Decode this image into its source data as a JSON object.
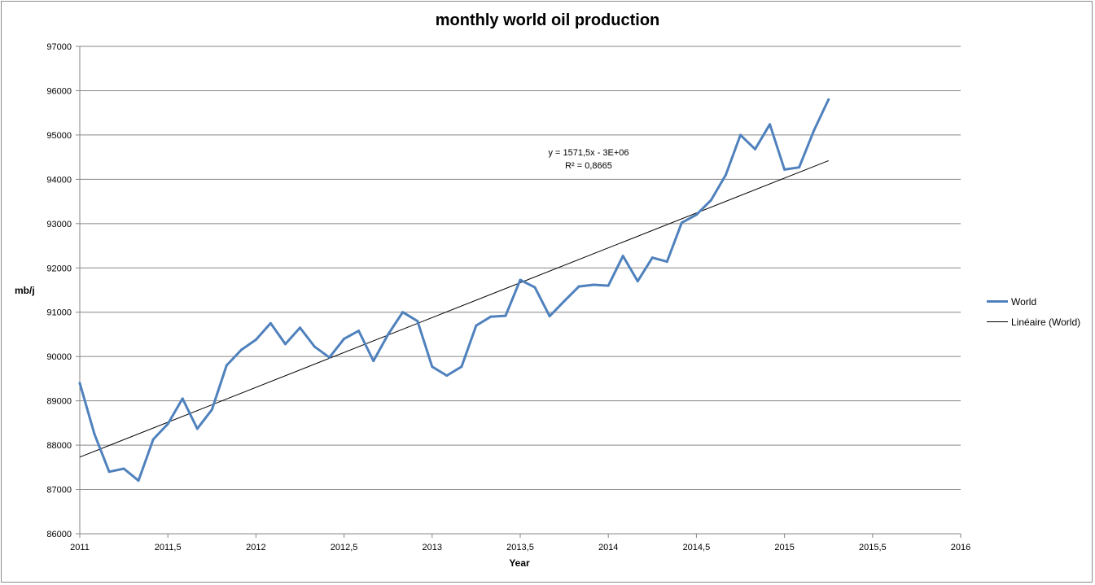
{
  "chart_data": {
    "type": "line",
    "title": "monthly world oil production",
    "xlabel": "Year",
    "ylabel": "mb/j",
    "xlim": [
      2011,
      2016
    ],
    "ylim": [
      86000,
      97000
    ],
    "x_ticks": [
      "2011",
      "2011,5",
      "2012",
      "2012,5",
      "2013",
      "2013,5",
      "2014",
      "2014,5",
      "2015",
      "2015,5",
      "2016"
    ],
    "y_ticks": [
      "86000",
      "87000",
      "88000",
      "89000",
      "90000",
      "91000",
      "92000",
      "93000",
      "94000",
      "95000",
      "96000",
      "97000"
    ],
    "grid": "horizontal",
    "legend_position": "right",
    "series": [
      {
        "name": "World",
        "color": "#4f81bd",
        "x": [
          2011.0,
          2011.083,
          2011.167,
          2011.25,
          2011.333,
          2011.417,
          2011.5,
          2011.583,
          2011.667,
          2011.75,
          2011.833,
          2011.917,
          2012.0,
          2012.083,
          2012.167,
          2012.25,
          2012.333,
          2012.417,
          2012.5,
          2012.583,
          2012.667,
          2012.75,
          2012.833,
          2012.917,
          2013.0,
          2013.083,
          2013.167,
          2013.25,
          2013.333,
          2013.417,
          2013.5,
          2013.583,
          2013.667,
          2013.75,
          2013.833,
          2013.917,
          2014.0,
          2014.083,
          2014.167,
          2014.25,
          2014.333,
          2014.417,
          2014.5,
          2014.583,
          2014.667,
          2014.75,
          2014.833,
          2014.917,
          2015.0,
          2015.083,
          2015.167,
          2015.25
        ],
        "values": [
          89400,
          88250,
          87400,
          87470,
          87200,
          88130,
          88480,
          89050,
          88370,
          88800,
          89800,
          90150,
          90380,
          90750,
          90280,
          90650,
          90220,
          89980,
          90400,
          90580,
          89900,
          90500,
          91000,
          90800,
          89770,
          89570,
          89770,
          90700,
          90900,
          90920,
          91730,
          91560,
          90910,
          91250,
          91580,
          91620,
          91600,
          92270,
          91700,
          92230,
          92140,
          93020,
          93200,
          93530,
          94100,
          95000,
          94680,
          95240,
          94220,
          94270,
          95100,
          95800
        ]
      },
      {
        "name": "Linéaire (World)",
        "color": "#000000",
        "x": [
          2011.0,
          2015.25
        ],
        "values": [
          87730,
          94420
        ]
      }
    ],
    "annotation": {
      "equation": "y = 1571,5x - 3E+06",
      "r2": "R² = 0,8665"
    }
  }
}
